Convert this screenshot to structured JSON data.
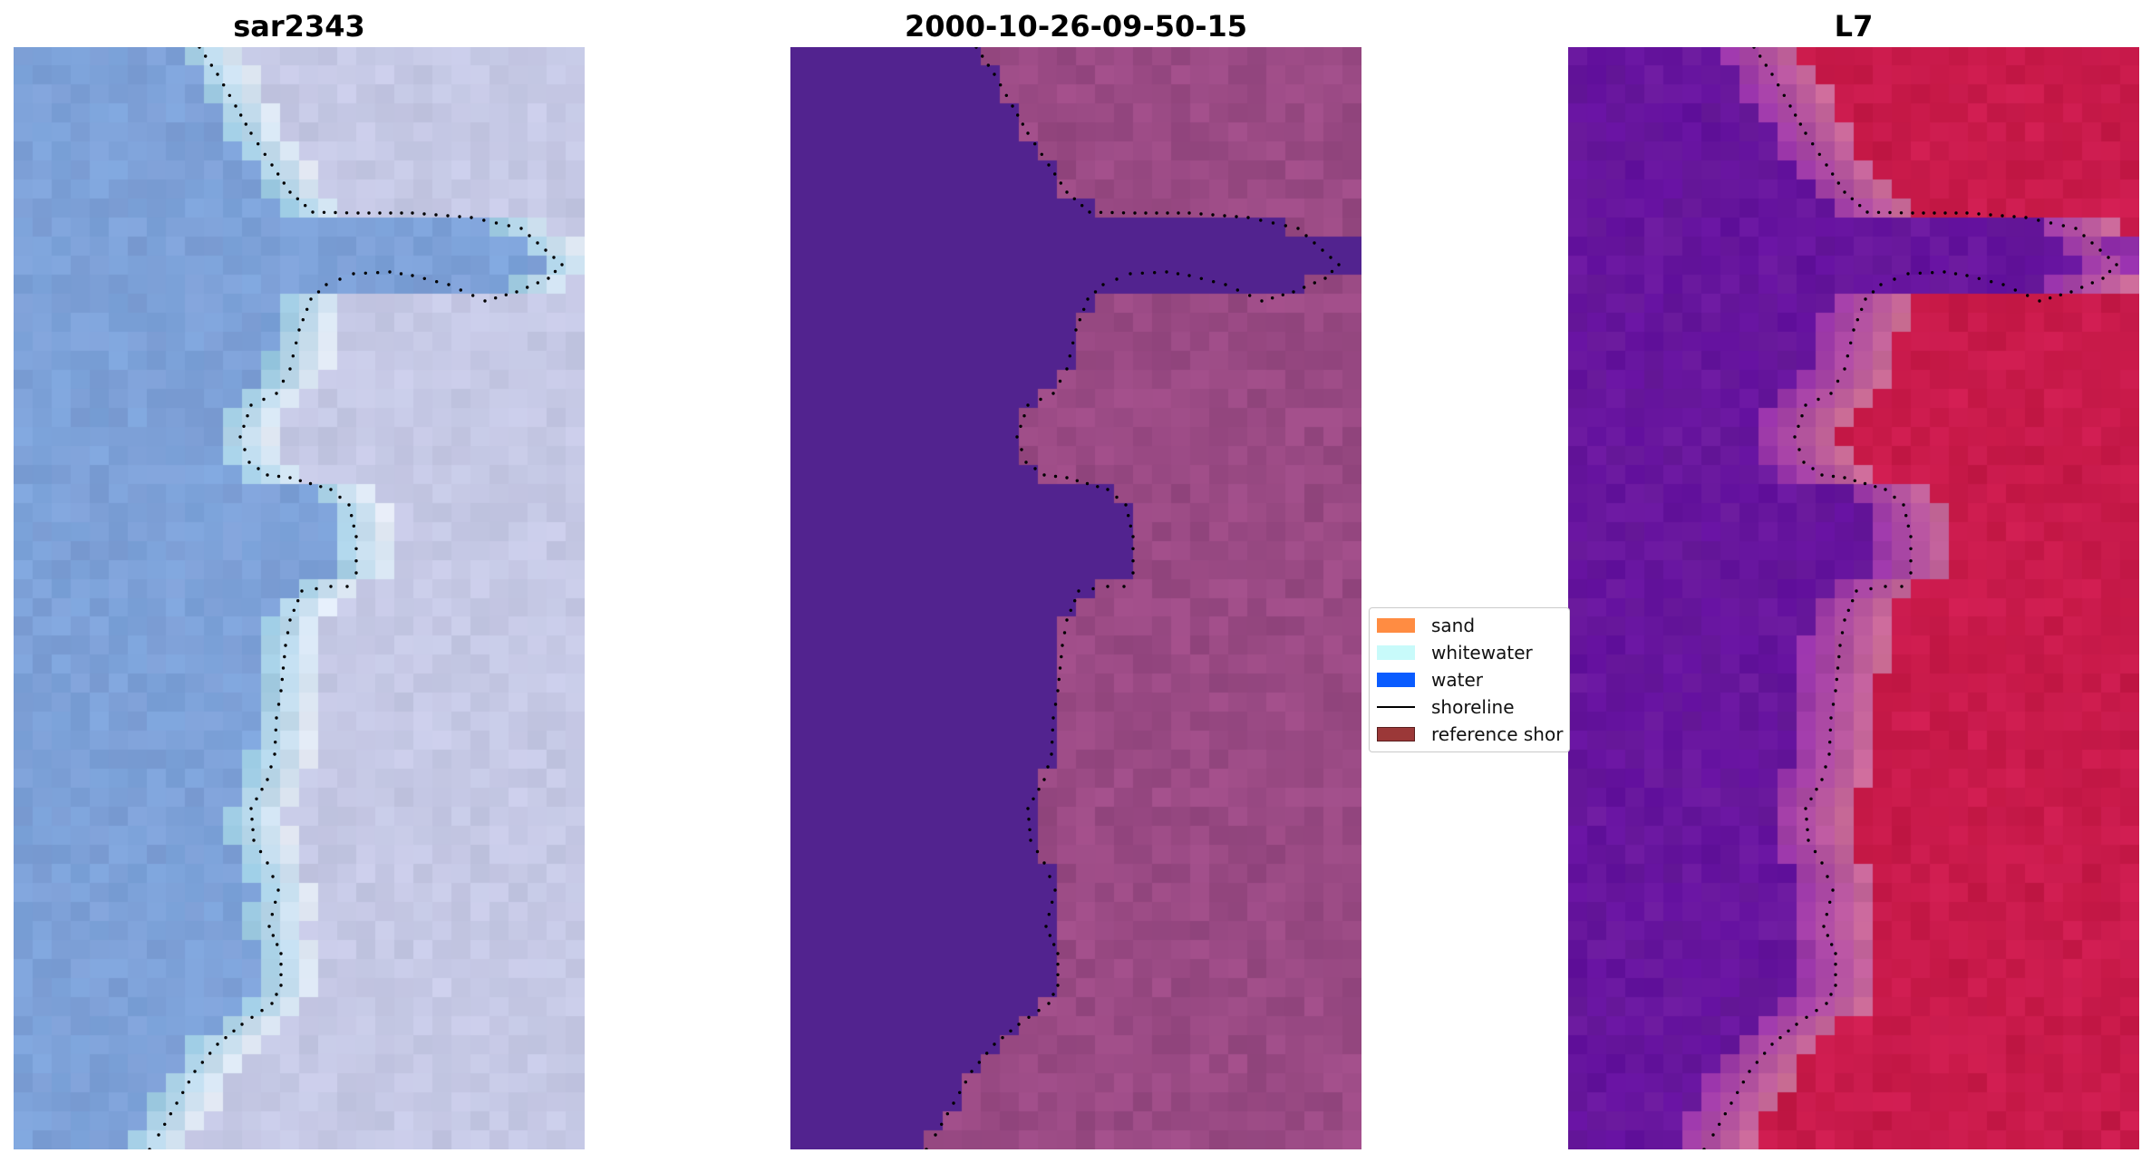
{
  "panels": [
    {
      "title": "sar2343",
      "style": "rgb-natural"
    },
    {
      "title": "2000-10-26-09-50-15",
      "style": "classified"
    },
    {
      "title": "L7",
      "style": "false-color"
    }
  ],
  "legend": {
    "items": [
      {
        "label": "sand",
        "type": "patch",
        "color": "#ff8c42"
      },
      {
        "label": "whitewater",
        "type": "patch",
        "color": "#c8fafa"
      },
      {
        "label": "water",
        "type": "patch",
        "color": "#0a5cff"
      },
      {
        "label": "shoreline",
        "type": "line",
        "color": "#000000"
      },
      {
        "label": "reference shor",
        "type": "patch",
        "color": "#9b3838"
      }
    ]
  },
  "colors": {
    "water_class": "#52238f",
    "sand_class": "#9a4a84",
    "rgb_water": "#7e9fd6",
    "rgb_land": "#c3c7e3",
    "false_water": "#6a1a9c",
    "false_land": "#c41848",
    "shoreline_points": "#000000"
  }
}
